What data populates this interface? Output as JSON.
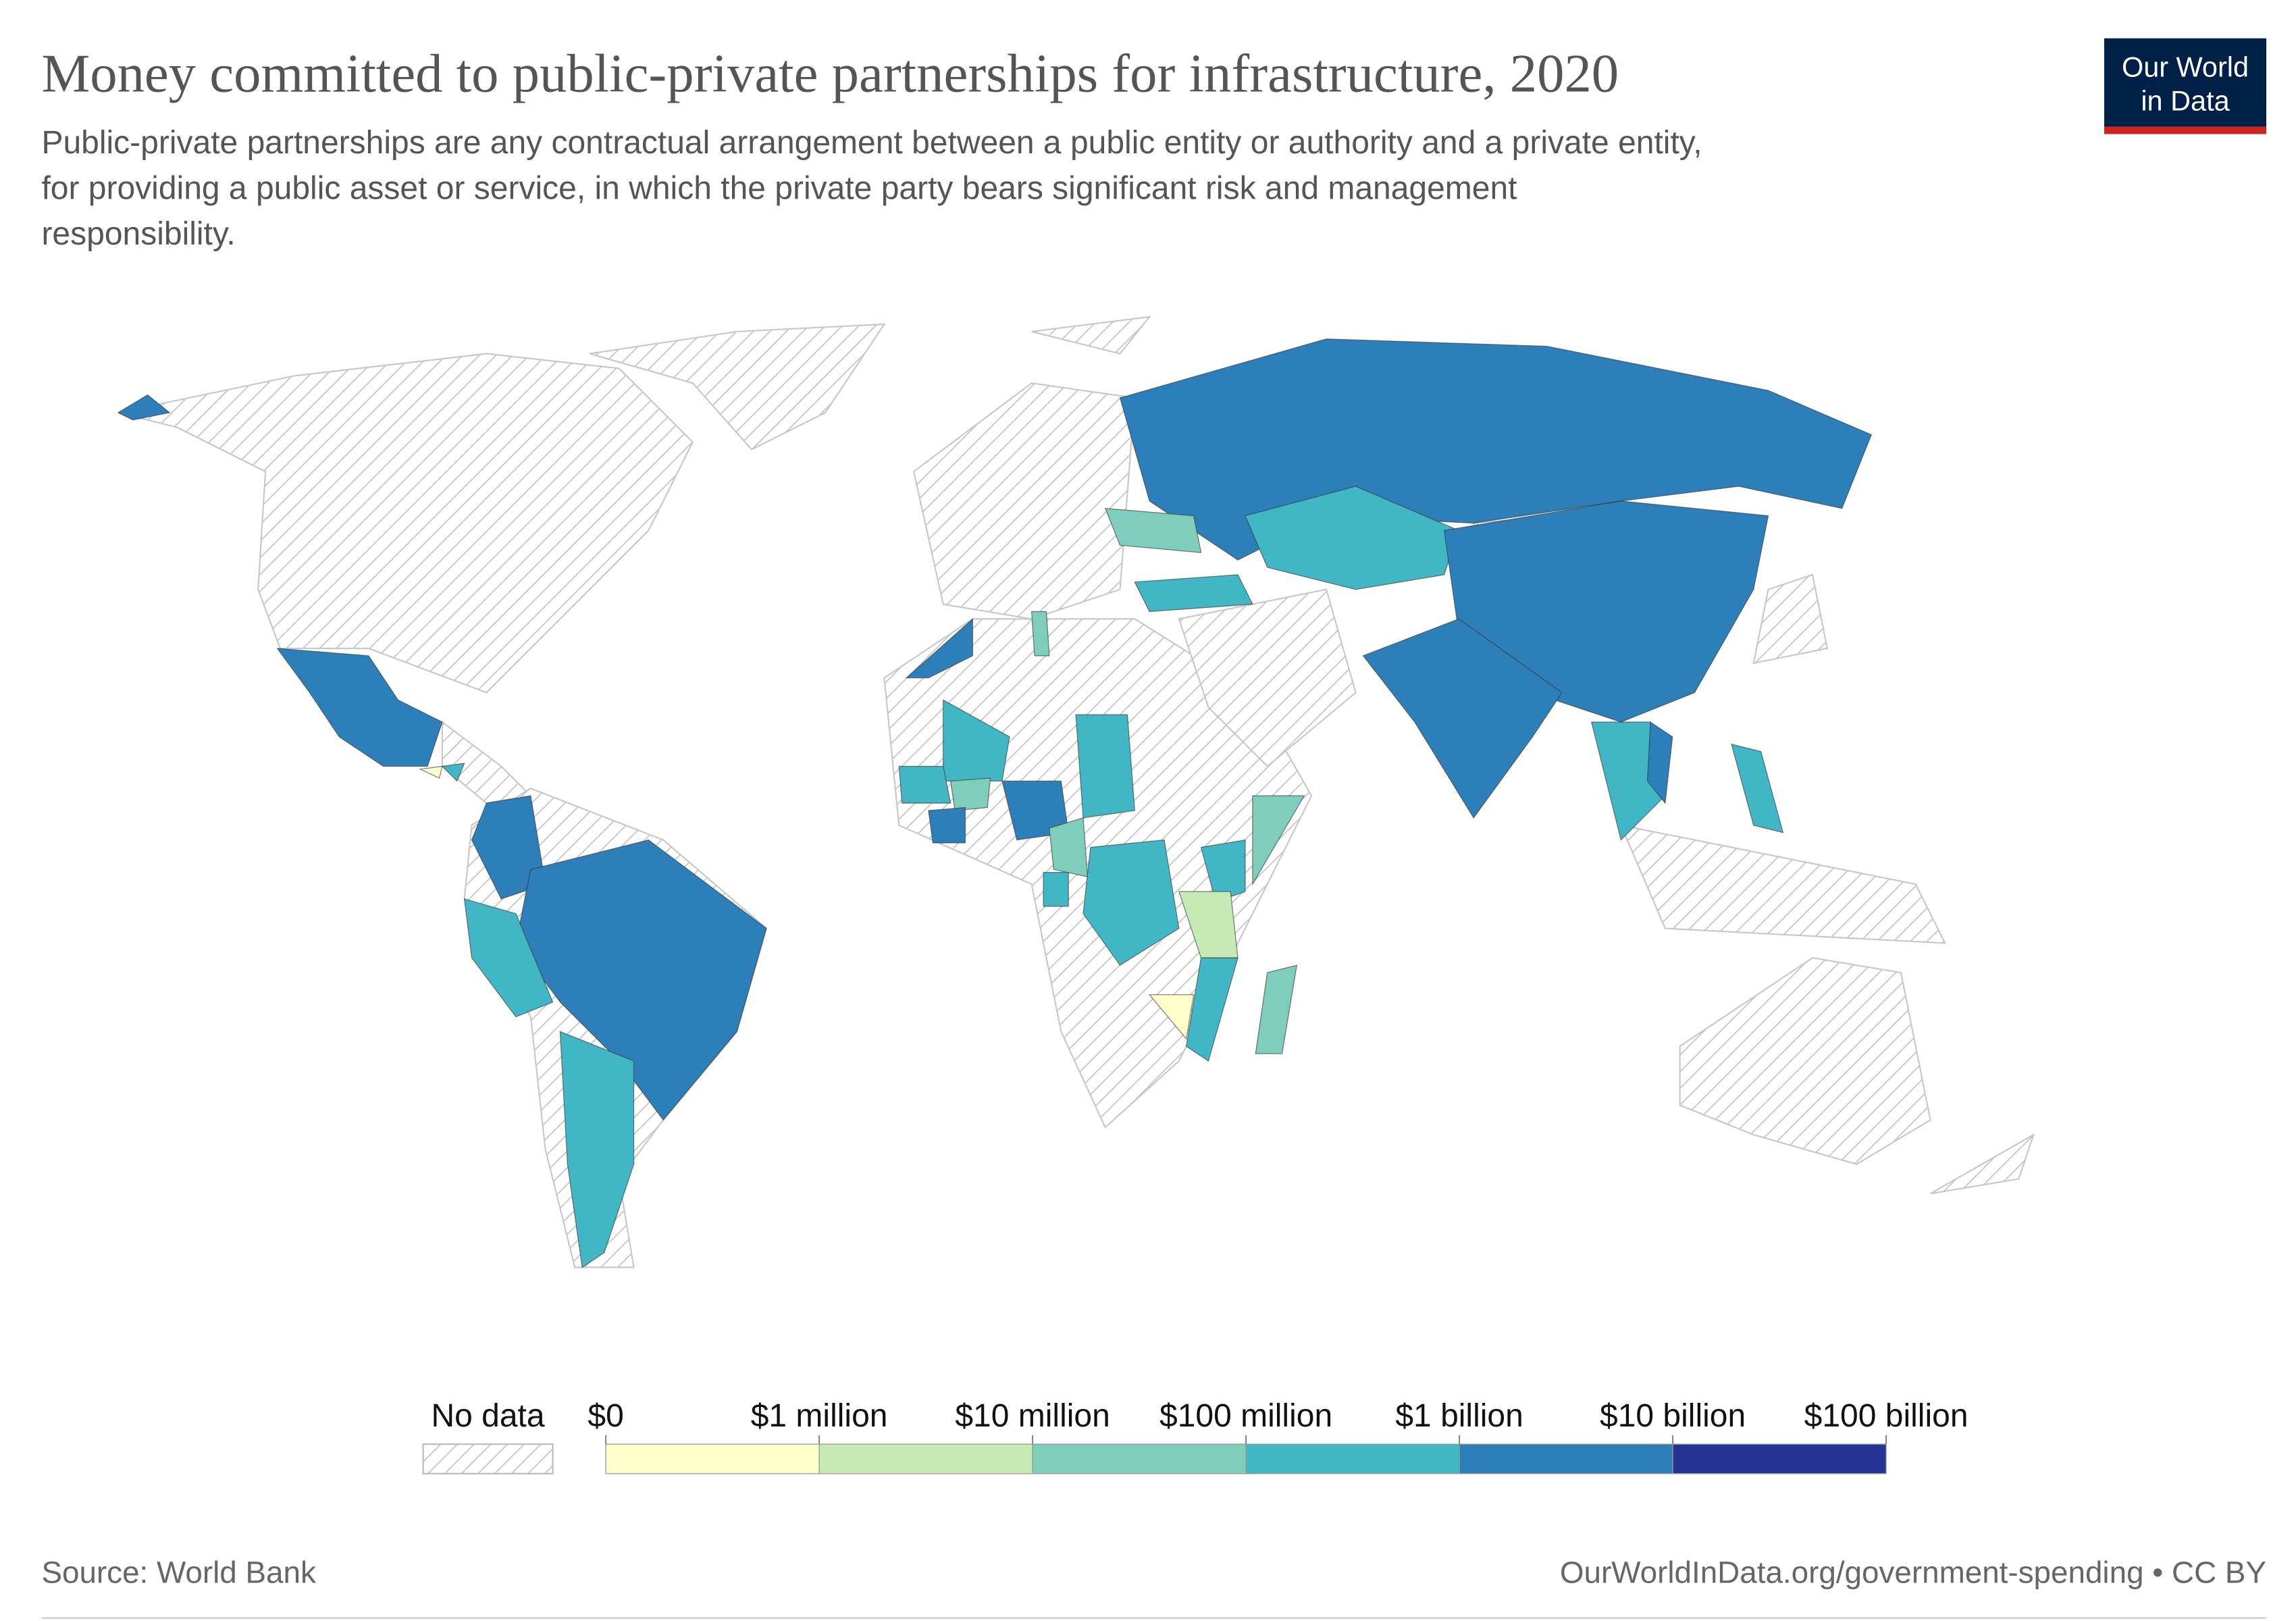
{
  "header": {
    "title": "Money committed to public-private partnerships for infrastructure, 2020",
    "subtitle_lines": [
      "Public-private partnerships are any contractual arrangement between a public entity or authority and a private entity,",
      "for providing a public asset or service, in which the private party bears significant risk and management",
      "responsibility."
    ],
    "logo_lines": [
      "Our World",
      "in Data"
    ]
  },
  "legend": {
    "no_data": "No data",
    "ticks": [
      {
        "value": 0,
        "label": "$0"
      },
      {
        "value": 1000000,
        "label": "$1 million"
      },
      {
        "value": 10000000,
        "label": "$10 million"
      },
      {
        "value": 100000000,
        "label": "$100 million"
      },
      {
        "value": 1000000000,
        "label": "$1 billion"
      },
      {
        "value": 10000000000,
        "label": "$10 billion"
      },
      {
        "value": 100000000000,
        "label": "$100 billion"
      }
    ],
    "colors": [
      "#ffffcc",
      "#c7e9b4",
      "#7fcdbb",
      "#41b6c4",
      "#2c7fb8",
      "#253494"
    ]
  },
  "footer": {
    "source": "Source: World Bank",
    "url": "OurWorldInData.org/government-spending • CC BY"
  }
}
